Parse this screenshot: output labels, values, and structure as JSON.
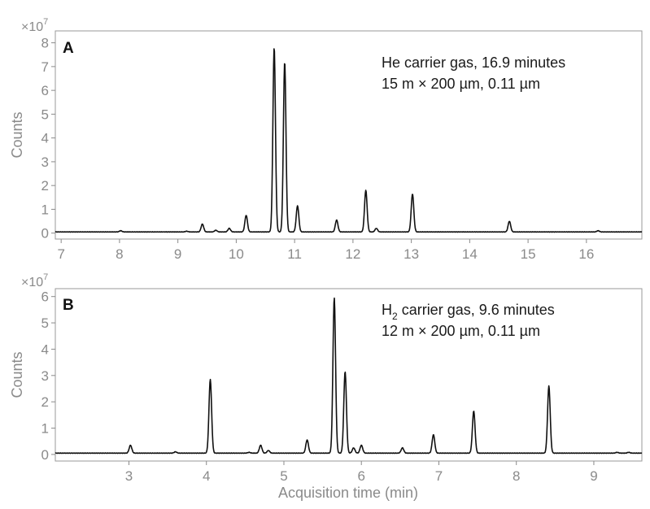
{
  "chart_data": [
    {
      "type": "line",
      "panel": "A",
      "annotation": [
        "He carrier gas, 16.9 minutes",
        "15 m × 200 µm, 0.11 µm"
      ],
      "ylabel": "Counts",
      "y_multiplier": "×10^7",
      "xlim": [
        6.9,
        16.95
      ],
      "ylim": [
        -0.25,
        8.5
      ],
      "x_ticks": [
        7,
        8,
        9,
        10,
        11,
        12,
        13,
        14,
        15,
        16
      ],
      "y_ticks": [
        0,
        1,
        2,
        3,
        4,
        5,
        6,
        7,
        8
      ],
      "baseline": 0.05,
      "peaks": [
        {
          "x": 8.02,
          "y": 0.1
        },
        {
          "x": 9.15,
          "y": 0.08
        },
        {
          "x": 9.42,
          "y": 0.38
        },
        {
          "x": 9.65,
          "y": 0.12
        },
        {
          "x": 9.88,
          "y": 0.2
        },
        {
          "x": 10.17,
          "y": 0.75
        },
        {
          "x": 10.65,
          "y": 7.8
        },
        {
          "x": 10.83,
          "y": 7.2
        },
        {
          "x": 11.05,
          "y": 1.15
        },
        {
          "x": 11.72,
          "y": 0.55
        },
        {
          "x": 12.22,
          "y": 1.8
        },
        {
          "x": 12.4,
          "y": 0.2
        },
        {
          "x": 13.02,
          "y": 1.65
        },
        {
          "x": 14.68,
          "y": 0.5
        },
        {
          "x": 16.2,
          "y": 0.1
        }
      ]
    },
    {
      "type": "line",
      "panel": "B",
      "annotation": [
        "H2 carrier gas, 9.6 minutes",
        "12 m × 200 µm, 0.11 µm"
      ],
      "xlabel": "Acquisition time (min)",
      "ylabel": "Counts",
      "y_multiplier": "×10^7",
      "xlim": [
        2.05,
        9.62
      ],
      "ylim": [
        -0.25,
        6.3
      ],
      "x_ticks": [
        3,
        4,
        5,
        6,
        7,
        8,
        9
      ],
      "y_ticks": [
        0,
        1,
        2,
        3,
        4,
        5,
        6
      ],
      "baseline": 0.05,
      "peaks": [
        {
          "x": 3.02,
          "y": 0.35
        },
        {
          "x": 3.6,
          "y": 0.1
        },
        {
          "x": 4.05,
          "y": 2.85
        },
        {
          "x": 4.55,
          "y": 0.08
        },
        {
          "x": 4.7,
          "y": 0.35
        },
        {
          "x": 4.8,
          "y": 0.15
        },
        {
          "x": 5.3,
          "y": 0.55
        },
        {
          "x": 5.65,
          "y": 5.95
        },
        {
          "x": 5.79,
          "y": 3.15
        },
        {
          "x": 5.9,
          "y": 0.25
        },
        {
          "x": 6.0,
          "y": 0.35
        },
        {
          "x": 6.53,
          "y": 0.25
        },
        {
          "x": 6.93,
          "y": 0.75
        },
        {
          "x": 7.45,
          "y": 1.65
        },
        {
          "x": 8.42,
          "y": 2.6
        },
        {
          "x": 9.3,
          "y": 0.08
        },
        {
          "x": 9.45,
          "y": 0.08
        }
      ]
    }
  ],
  "labels": {
    "panel_a": "A",
    "panel_b": "B",
    "ylabel": "Counts",
    "xlabel": "Acquisition time (min)",
    "exp_base": "×10",
    "exp_power": "7",
    "a_line1": "He carrier gas, 16.9 minutes",
    "a_line2": "15 m × 200 µm, 0.11 µm",
    "b_line1_pre": "H",
    "b_line1_sub": "2",
    "b_line1_post": " carrier gas, 9.6 minutes",
    "b_line2": "12 m × 200 µm, 0.11 µm"
  }
}
